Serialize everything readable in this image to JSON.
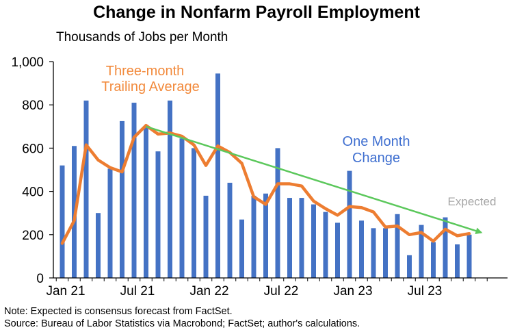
{
  "chart_data": {
    "type": "bar",
    "title": "Change in Nonfarm Payroll Employment",
    "subtitle": "Thousands of Jobs per Month",
    "ylim": [
      0,
      1000
    ],
    "yticks": [
      0,
      200,
      400,
      600,
      800,
      1000
    ],
    "ytick_labels": [
      "0",
      "200",
      "400",
      "600",
      "800",
      "1,000"
    ],
    "grid": false,
    "x_labels": [
      {
        "index": 0,
        "label": "Jan 21"
      },
      {
        "index": 6,
        "label": "Jul 21"
      },
      {
        "index": 12,
        "label": "Jan 22"
      },
      {
        "index": 18,
        "label": "Jul 22"
      },
      {
        "index": 24,
        "label": "Jan 23"
      },
      {
        "index": 30,
        "label": "Jul 23"
      }
    ],
    "categories": [
      "Jan 21",
      "Feb 21",
      "Mar 21",
      "Apr 21",
      "May 21",
      "Jun 21",
      "Jul 21",
      "Aug 21",
      "Sep 21",
      "Oct 21",
      "Nov 21",
      "Dec 21",
      "Jan 22",
      "Feb 22",
      "Mar 22",
      "Apr 22",
      "May 22",
      "Jun 22",
      "Jul 22",
      "Aug 22",
      "Sep 22",
      "Oct 22",
      "Nov 22",
      "Dec 22",
      "Jan 23",
      "Feb 23",
      "Mar 23",
      "Apr 23",
      "May 23",
      "Jun 23",
      "Jul 23",
      "Aug 23",
      "Sep 23",
      "Oct 23",
      "Nov 23",
      "Dec 23"
    ],
    "series": [
      {
        "kind": "bar",
        "color": "#4472c4",
        "values": [
          520,
          610,
          820,
          300,
          505,
          725,
          810,
          695,
          585,
          820,
          645,
          600,
          380,
          945,
          440,
          270,
          380,
          390,
          600,
          370,
          370,
          340,
          305,
          255,
          495,
          265,
          230,
          230,
          295,
          105,
          245,
          165,
          280,
          155,
          200,
          null
        ]
      },
      {
        "kind": "line",
        "color": "#ed7d31",
        "values": [
          160,
          265,
          615,
          545,
          510,
          490,
          650,
          705,
          665,
          670,
          655,
          615,
          520,
          610,
          580,
          530,
          375,
          340,
          435,
          435,
          425,
          355,
          320,
          290,
          330,
          325,
          305,
          235,
          240,
          200,
          210,
          170,
          225,
          195,
          205,
          null
        ]
      }
    ],
    "trend_arrow": {
      "color": "#5cc85c",
      "from": {
        "index": 7,
        "value": 700
      },
      "to": {
        "index": 35,
        "value": 210
      }
    },
    "annotations": {
      "line_label": [
        "Three-month",
        "Trailing Average"
      ],
      "bar_label": [
        "One Month",
        "Change"
      ],
      "expected": "Expected"
    }
  },
  "notes": {
    "note": "Note: Expected is consensus forecast from FactSet.",
    "source": "Source: Bureau of Labor Statistics via Macrobond; FactSet; author's calculations."
  }
}
